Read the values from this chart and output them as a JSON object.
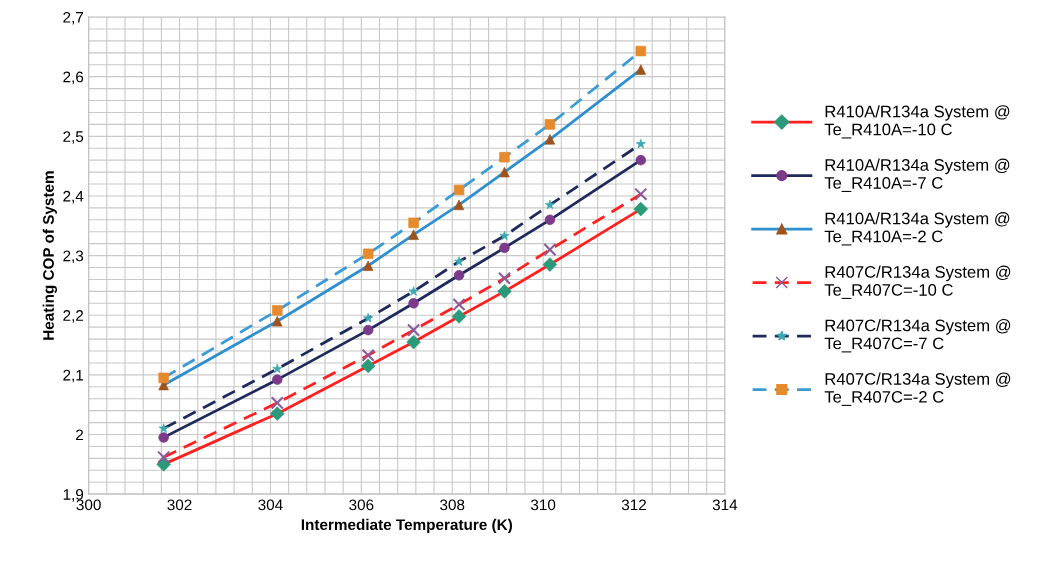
{
  "chart_data": {
    "type": "line",
    "xlabel": "Intermediate Temperature (K)",
    "ylabel": "Heating COP of System",
    "x": [
      301.65,
      304.15,
      306.15,
      307.15,
      308.15,
      309.15,
      310.15,
      312.15
    ],
    "series": [
      {
        "name": "R410A/R134a System @\nTe_R410A=-10 C",
        "color": "#ff2020",
        "colors": [
          "#2a9a7a",
          "#2a9a7a",
          "#2a9a7a",
          "#2a9a7a",
          "#2a9a7a",
          "#2a9a7a",
          "#2a9a7a",
          "#2a9a7a"
        ],
        "marker": "diamond",
        "line_style": "solid",
        "values": [
          1.95,
          2.035,
          2.115,
          2.155,
          2.198,
          2.24,
          2.285,
          2.378
        ]
      },
      {
        "name": "R410A/R134a System @\nTe_R410A=-7 C",
        "color": "#1f2a5c",
        "colors": [
          "#7b3a8a",
          "#7b3a8a",
          "#7b3a8a",
          "#7b3a8a",
          "#7b3a8a",
          "#7b3a8a",
          "#7b3a8a",
          "#7b3a8a"
        ],
        "marker": "circle",
        "line_style": "solid",
        "values": [
          1.995,
          2.092,
          2.175,
          2.22,
          2.267,
          2.313,
          2.36,
          2.46
        ]
      },
      {
        "name": "R410A/R134a System @\nTe_R410A=-2 C",
        "color": "#2e8fcf",
        "colors": [
          "#a0521d",
          "#a0521d",
          "#a0521d",
          "#a0521d",
          "#a0521d",
          "#a0521d",
          "#a0521d",
          "#a0521d"
        ],
        "marker": "triangle",
        "line_style": "solid",
        "values": [
          2.083,
          2.19,
          2.283,
          2.335,
          2.385,
          2.44,
          2.495,
          2.612
        ]
      },
      {
        "name": "R407C/R134a System @\nTe_R407C=-10 C",
        "color": "#ff2020",
        "colors": [
          "#8a5a9a",
          "#8a5a9a",
          "#8a5a9a",
          "#8a5a9a",
          "#8a5a9a",
          "#8a5a9a",
          "#8a5a9a",
          "#8a5a9a"
        ],
        "marker": "cross",
        "line_style": "dashed",
        "values": [
          1.962,
          2.053,
          2.133,
          2.175,
          2.218,
          2.262,
          2.31,
          2.403
        ]
      },
      {
        "name": "R407C/R134a System @\nTe_R407C=-7 C",
        "color": "#1f2a5c",
        "colors": [
          "#3aaab0",
          "#3aaab0",
          "#3aaab0",
          "#3aaab0",
          "#3aaab0",
          "#3aaab0",
          "#3aaab0",
          "#3aaab0"
        ],
        "marker": "star",
        "line_style": "dashed",
        "values": [
          2.01,
          2.11,
          2.195,
          2.24,
          2.29,
          2.333,
          2.385,
          2.487
        ]
      },
      {
        "name": "R407C/R134a System @\nTe_R407C=-2 C",
        "color": "#3a9bd5",
        "colors": [
          "#e68a2e",
          "#e68a2e",
          "#e68a2e",
          "#e68a2e",
          "#e68a2e",
          "#e68a2e",
          "#e68a2e",
          "#e68a2e"
        ],
        "marker": "square",
        "line_style": "dashed",
        "values": [
          2.095,
          2.208,
          2.303,
          2.355,
          2.41,
          2.465,
          2.52,
          2.643
        ]
      }
    ],
    "xlim": [
      300,
      314
    ],
    "xticks": [
      300,
      302,
      304,
      306,
      308,
      310,
      312,
      314
    ],
    "ylim": [
      1.9,
      2.7
    ],
    "yticks": [
      {
        "value": 1.9,
        "label": "1,9"
      },
      2,
      {
        "value": 2.1,
        "label": "2,1"
      },
      {
        "value": 2.2,
        "label": "2,2"
      },
      {
        "value": 2.3,
        "label": "2,3"
      },
      {
        "value": 2.4,
        "label": "2,4"
      },
      {
        "value": 2.5,
        "label": "2,5"
      },
      {
        "value": 2.6,
        "label": "2,6"
      },
      {
        "value": 2.7,
        "label": "2,7"
      }
    ],
    "grid": true,
    "legend": "right"
  }
}
